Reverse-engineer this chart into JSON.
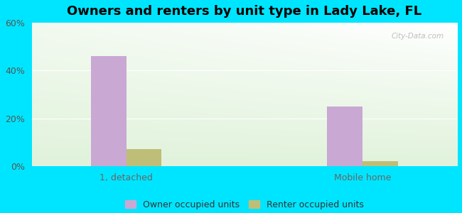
{
  "title": "Owners and renters by unit type in Lady Lake, FL",
  "categories": [
    "1, detached",
    "Mobile home"
  ],
  "owner_values": [
    46.0,
    25.0
  ],
  "renter_values": [
    7.0,
    2.0
  ],
  "owner_color": "#c9a8d4",
  "renter_color": "#bfbe78",
  "ylim": [
    0,
    60
  ],
  "yticks": [
    0,
    20,
    40,
    60
  ],
  "yticklabels": [
    "0%",
    "20%",
    "40%",
    "60%"
  ],
  "bar_width": 0.3,
  "background_color": "#00e5ff",
  "plot_bg_color": "#d4ecd0",
  "watermark": "City-Data.com",
  "legend_owner": "Owner occupied units",
  "legend_renter": "Renter occupied units",
  "title_fontsize": 13,
  "tick_fontsize": 9,
  "legend_fontsize": 9,
  "grid_color": "#c8dcc4",
  "group_positions": [
    1.0,
    3.0
  ],
  "xlim": [
    0.2,
    3.8
  ]
}
